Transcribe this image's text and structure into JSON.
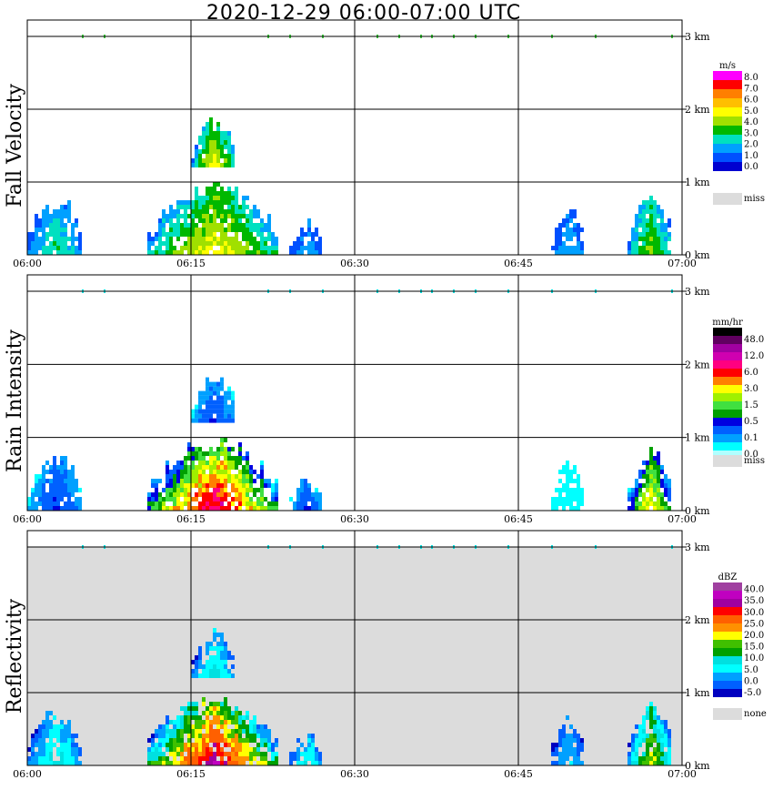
{
  "title": "2020-12-29   06:00-07:00 UTC",
  "x_ticks": [
    "06:00",
    "06:15",
    "06:30",
    "06:45",
    "07:00"
  ],
  "y_ticks": [
    "0 km",
    "1 km",
    "2 km",
    "3 km"
  ],
  "colors": {
    "miss": "#dcdcdc",
    "axis": "#000000"
  },
  "panels": [
    {
      "name": "fall-velocity",
      "ylabel": "Fall Velocity",
      "unit": "m/s",
      "legend_labels": [
        "8.0",
        "7.0",
        "6.0",
        "5.0",
        "4.0",
        "3.0",
        "2.0",
        "1.0",
        "0.0"
      ],
      "legend_colors": [
        "#ff00ff",
        "#ff0000",
        "#ff7f00",
        "#ffbf00",
        "#ffff00",
        "#a0e000",
        "#00b800",
        "#00e0c0",
        "#00a0ff",
        "#0050ff",
        "#0000d0"
      ],
      "miss_label": "miss",
      "background": "#ffffff"
    },
    {
      "name": "rain-intensity",
      "ylabel": "Rain Intensity",
      "unit": "mm/hr",
      "legend_labels": [
        "48.0",
        "12.0",
        "6.0",
        "3.0",
        "1.5",
        "0.5",
        "0.1",
        "0.0"
      ],
      "legend_colors": [
        "#000000",
        "#600060",
        "#a000a0",
        "#d000b0",
        "#ff0080",
        "#ff0000",
        "#ff8000",
        "#ffff00",
        "#a0f000",
        "#40e040",
        "#00a000",
        "#0000e0",
        "#0060ff",
        "#00a0ff",
        "#00ffff",
        "#b0ffff"
      ],
      "miss_label": "miss",
      "background": "#ffffff"
    },
    {
      "name": "reflectivity",
      "ylabel": "Reflectivity",
      "unit": "dBZ",
      "legend_labels": [
        "40.0",
        "35.0",
        "30.0",
        "25.0",
        "20.0",
        "15.0",
        "10.0",
        "5.0",
        "0.0",
        "-5.0"
      ],
      "legend_colors": [
        "#a040a0",
        "#c000c0",
        "#a000a0",
        "#ff0000",
        "#ff6000",
        "#ff9000",
        "#ffff00",
        "#40c000",
        "#00a000",
        "#00e0e0",
        "#00ffff",
        "#00a0ff",
        "#0060ff",
        "#0000c0"
      ],
      "miss_label": "none",
      "background": "#dcdcdc"
    }
  ],
  "chart_data": {
    "type": "heatmap",
    "x": [
      "06:00",
      "06:15",
      "06:30",
      "06:45",
      "07:00"
    ],
    "ylim": [
      0,
      3
    ],
    "yunit": "km",
    "rain_cells": [
      {
        "t_start": "06:00",
        "t_end": "06:05",
        "top_km": 0.9,
        "fall_velocity": 3.0,
        "rain_intensity": 0.3,
        "reflectivity": 10.0
      },
      {
        "t_start": "06:11",
        "t_end": "06:23",
        "top_km": 1.1,
        "fall_velocity": 5.0,
        "rain_intensity": 12.0,
        "reflectivity": 35.0
      },
      {
        "t_start": "06:15",
        "t_end": "06:19",
        "top_km": 1.95,
        "bottom_km": 1.2,
        "fall_velocity": 5.0,
        "rain_intensity": 0.3,
        "reflectivity": 10.0
      },
      {
        "t_start": "06:24",
        "t_end": "06:27",
        "top_km": 0.5,
        "fall_velocity": 2.0,
        "rain_intensity": 0.3,
        "reflectivity": 10.0
      },
      {
        "t_start": "06:48",
        "t_end": "06:51",
        "top_km": 0.75,
        "fall_velocity": 2.0,
        "rain_intensity": 0.1,
        "reflectivity": 5.0
      },
      {
        "t_start": "06:55",
        "t_end": "06:59",
        "top_km": 0.95,
        "fall_velocity": 4.0,
        "rain_intensity": 3.0,
        "reflectivity": 20.0
      }
    ]
  }
}
